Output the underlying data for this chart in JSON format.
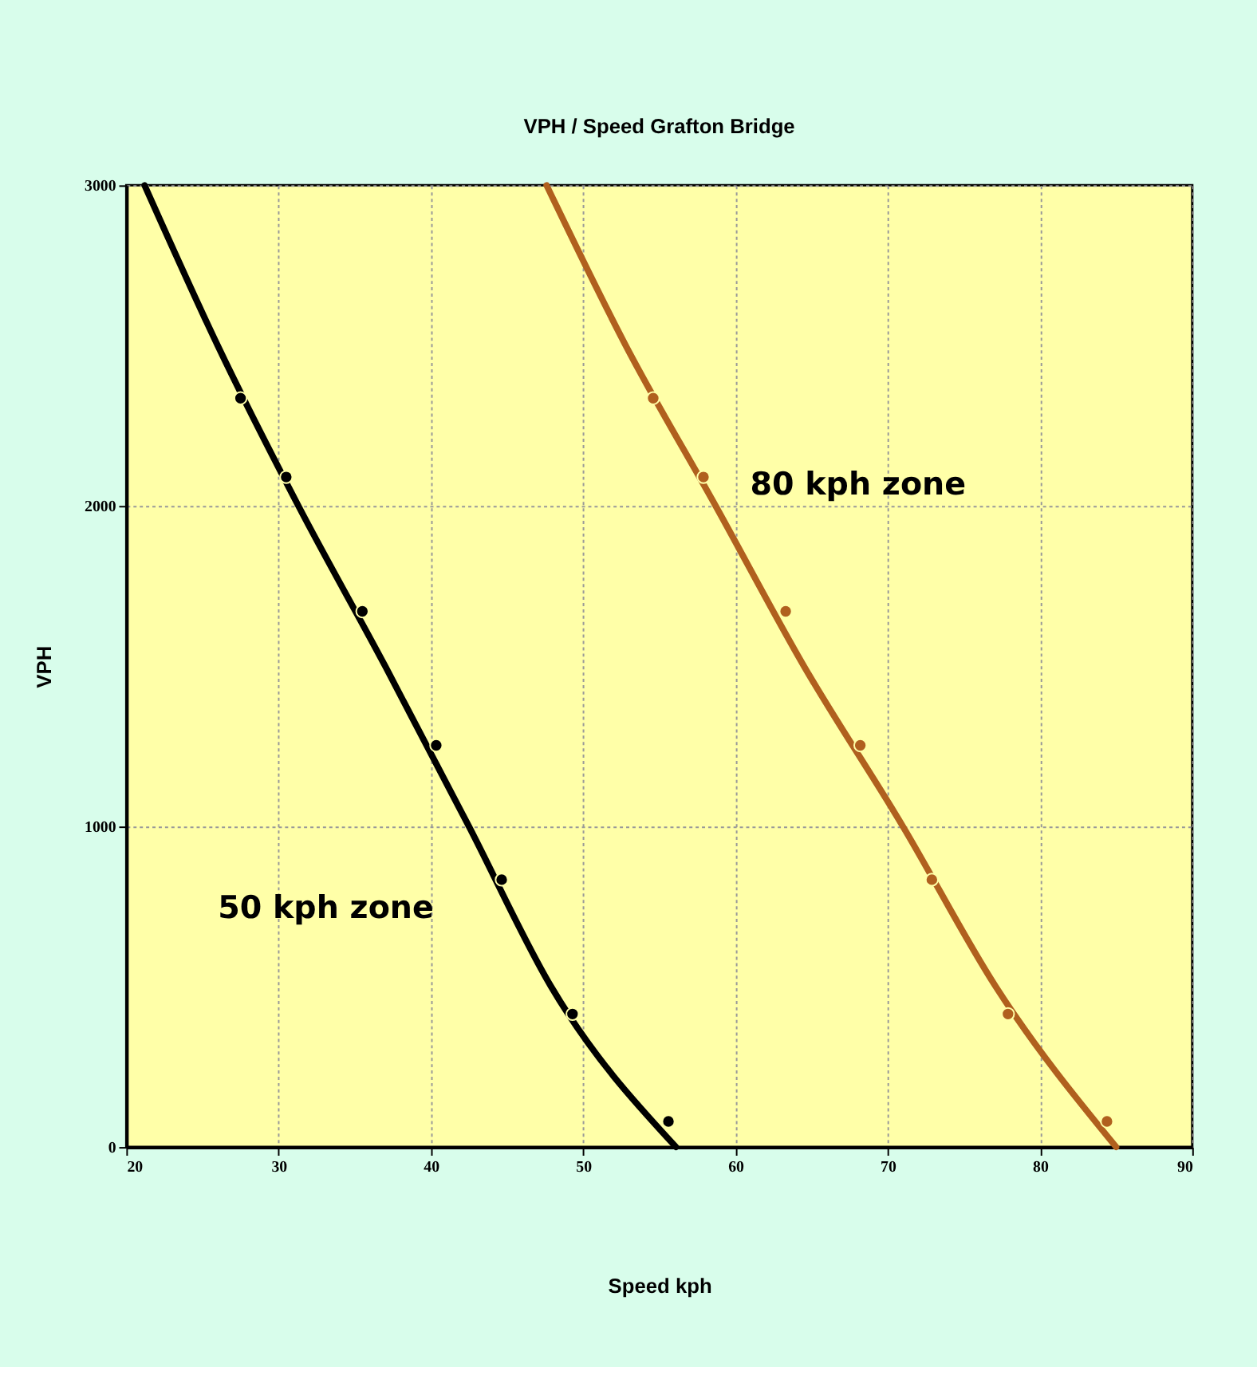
{
  "chart_data": {
    "type": "scatter",
    "title": "VPH / Speed Grafton Bridge",
    "xlabel": "Speed kph",
    "ylabel": "VPH",
    "xlim": [
      20,
      90
    ],
    "xticks": [
      20,
      30,
      40,
      50,
      60,
      70,
      80,
      90
    ],
    "ylim": [
      0,
      3000
    ],
    "yticks": [
      0,
      1000,
      2000,
      3000
    ],
    "grid": true,
    "series": [
      {
        "color": "#000000",
        "marker": "circle",
        "x": [
          27.5,
          30.5,
          35.5,
          40.35,
          44.65,
          49.3,
          55.6
        ],
        "values": [
          2336,
          2090,
          1671,
          1253,
          834,
          415,
          80
        ]
      },
      {
        "color": "#b0601e",
        "marker": "circle",
        "x": [
          54.6,
          57.9,
          63.3,
          68.2,
          72.9,
          77.9,
          84.4
        ],
        "values": [
          2336,
          2090,
          1671,
          1253,
          834,
          415,
          80
        ]
      },
      {
        "type": "line",
        "color": "#000000",
        "marker": "none",
        "line_style": "solid",
        "x": [
          21.2,
          26.0,
          31.3,
          37.0,
          42.5,
          47.9,
          56.1
        ],
        "values": [
          3000,
          2500,
          2000,
          1500,
          1000,
          500,
          0
        ]
      },
      {
        "type": "line",
        "color": "#b0601e",
        "marker": "none",
        "line_style": "solid",
        "x": [
          47.6,
          52.8,
          58.7,
          64.5,
          71.0,
          77.1,
          85.0
        ],
        "values": [
          3000,
          2500,
          2000,
          1500,
          1000,
          500,
          0
        ]
      }
    ],
    "annotations": [
      "50 kph zone",
      "80 kph zone"
    ]
  }
}
